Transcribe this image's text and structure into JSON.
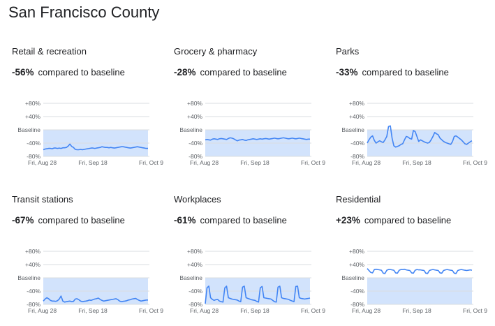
{
  "header": {
    "title": "San Francisco County"
  },
  "stat_suffix": "compared to baseline",
  "colors": {
    "line": "#4285f4",
    "band": "#d2e3fc",
    "grid": "#dadce0"
  },
  "axis": {
    "y_ticks": [
      {
        "label": "+80%",
        "value": 80
      },
      {
        "label": "+40%",
        "value": 40
      },
      {
        "label": "Baseline",
        "value": 0
      },
      {
        "label": "-40%",
        "value": -40
      },
      {
        "label": "-80%",
        "value": -80
      }
    ],
    "x_ticks": [
      "Fri, Aug 28",
      "Fri, Sep 18",
      "Fri, Oct 9"
    ]
  },
  "chart_data": [
    {
      "type": "line",
      "title": "Retail & recreation",
      "stat": "-56%",
      "ylim": [
        -80,
        80
      ],
      "x_labels": [
        "Fri, Aug 28",
        "Fri, Sep 18",
        "Fri, Oct 9"
      ],
      "values": [
        -60,
        -58,
        -57,
        -56,
        -56,
        -57,
        -55,
        -55,
        -56,
        -55,
        -56,
        -54,
        -54,
        -53,
        -49,
        -43,
        -50,
        -53,
        -59,
        -60,
        -60,
        -59,
        -60,
        -59,
        -58,
        -57,
        -56,
        -55,
        -55,
        -56,
        -55,
        -54,
        -53,
        -51,
        -52,
        -53,
        -53,
        -54,
        -53,
        -54,
        -55,
        -54,
        -53,
        -52,
        -51,
        -51,
        -52,
        -53,
        -54,
        -55,
        -54,
        -53,
        -52,
        -51,
        -52,
        -53,
        -54,
        -55,
        -56,
        -56
      ]
    },
    {
      "type": "line",
      "title": "Grocery & pharmacy",
      "stat": "-28%",
      "ylim": [
        -80,
        80
      ],
      "x_labels": [
        "Fri, Aug 28",
        "Fri, Sep 18",
        "Fri, Oct 9"
      ],
      "values": [
        -30,
        -29,
        -30,
        -31,
        -28,
        -27,
        -28,
        -29,
        -27,
        -26,
        -27,
        -28,
        -29,
        -26,
        -24,
        -25,
        -27,
        -30,
        -33,
        -31,
        -30,
        -29,
        -31,
        -32,
        -30,
        -29,
        -28,
        -27,
        -28,
        -29,
        -28,
        -27,
        -28,
        -27,
        -26,
        -27,
        -28,
        -27,
        -26,
        -25,
        -26,
        -27,
        -26,
        -25,
        -24,
        -25,
        -26,
        -27,
        -26,
        -25,
        -26,
        -27,
        -26,
        -25,
        -26,
        -27,
        -28,
        -29,
        -28,
        -28
      ]
    },
    {
      "type": "line",
      "title": "Parks",
      "stat": "-33%",
      "ylim": [
        -80,
        80
      ],
      "x_labels": [
        "Fri, Aug 28",
        "Fri, Sep 18",
        "Fri, Oct 9"
      ],
      "values": [
        -40,
        -30,
        -22,
        -18,
        -32,
        -40,
        -36,
        -33,
        -36,
        -38,
        -30,
        -20,
        10,
        12,
        -25,
        -48,
        -52,
        -50,
        -48,
        -44,
        -42,
        -30,
        -20,
        -22,
        -26,
        -28,
        -2,
        -5,
        -20,
        -35,
        -30,
        -33,
        -36,
        -38,
        -40,
        -38,
        -30,
        -20,
        -8,
        -12,
        -15,
        -25,
        -30,
        -35,
        -38,
        -40,
        -42,
        -44,
        -36,
        -20,
        -18,
        -22,
        -26,
        -30,
        -36,
        -42,
        -44,
        -40,
        -36,
        -33
      ]
    },
    {
      "type": "line",
      "title": "Transit stations",
      "stat": "-67%",
      "ylim": [
        -80,
        80
      ],
      "x_labels": [
        "Fri, Aug 28",
        "Fri, Sep 18",
        "Fri, Oct 9"
      ],
      "values": [
        -70,
        -64,
        -60,
        -63,
        -68,
        -70,
        -70,
        -71,
        -69,
        -64,
        -55,
        -70,
        -73,
        -72,
        -71,
        -70,
        -72,
        -71,
        -64,
        -63,
        -66,
        -70,
        -72,
        -71,
        -70,
        -69,
        -67,
        -68,
        -66,
        -64,
        -63,
        -61,
        -65,
        -68,
        -70,
        -69,
        -68,
        -67,
        -66,
        -65,
        -64,
        -63,
        -66,
        -70,
        -72,
        -71,
        -70,
        -69,
        -67,
        -66,
        -64,
        -63,
        -62,
        -65,
        -68,
        -70,
        -69,
        -68,
        -67,
        -67
      ]
    },
    {
      "type": "line",
      "title": "Workplaces",
      "stat": "-61%",
      "ylim": [
        -80,
        80
      ],
      "x_labels": [
        "Fri, Aug 28",
        "Fri, Sep 18",
        "Fri, Oct 9"
      ],
      "values": [
        -78,
        -30,
        -25,
        -60,
        -65,
        -68,
        -66,
        -65,
        -70,
        -72,
        -73,
        -30,
        -25,
        -60,
        -62,
        -64,
        -65,
        -66,
        -67,
        -70,
        -72,
        -28,
        -25,
        -60,
        -62,
        -64,
        -66,
        -67,
        -68,
        -71,
        -73,
        -30,
        -26,
        -60,
        -61,
        -62,
        -63,
        -64,
        -68,
        -72,
        -73,
        -28,
        -25,
        -60,
        -62,
        -63,
        -64,
        -65,
        -68,
        -70,
        -72,
        -26,
        -25,
        -60,
        -62,
        -63,
        -64,
        -63,
        -62,
        -61
      ]
    },
    {
      "type": "line",
      "title": "Residential",
      "stat": "+23%",
      "ylim": [
        -80,
        80
      ],
      "x_labels": [
        "Fri, Aug 28",
        "Fri, Sep 18",
        "Fri, Oct 9"
      ],
      "values": [
        28,
        22,
        16,
        15,
        25,
        26,
        25,
        24,
        23,
        14,
        13,
        23,
        25,
        25,
        24,
        23,
        15,
        14,
        23,
        25,
        25,
        26,
        24,
        23,
        22,
        15,
        14,
        23,
        25,
        24,
        24,
        23,
        22,
        14,
        13,
        22,
        24,
        25,
        24,
        23,
        22,
        15,
        14,
        22,
        24,
        25,
        24,
        23,
        22,
        14,
        13,
        22,
        24,
        25,
        24,
        23,
        22,
        23,
        24,
        23
      ]
    }
  ]
}
